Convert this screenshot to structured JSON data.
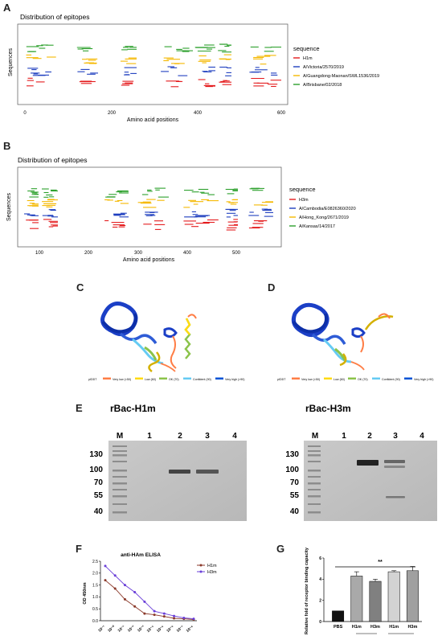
{
  "panels": {
    "A": "A",
    "B": "B",
    "C": "C",
    "D": "D",
    "E": "E",
    "F": "F",
    "G": "G"
  },
  "panel_a": {
    "title": "Distribution of epitopes",
    "xlabel": "Amino acid positions",
    "ylabel": "Sequences",
    "x_ticks": [
      "0",
      "200",
      "400",
      "600"
    ],
    "legend_title": "sequence",
    "legend": [
      {
        "name": "H1m",
        "color": "#e41a1c"
      },
      {
        "name": "A/Victoria/2570/2019",
        "color": "#1f3fbf"
      },
      {
        "name": "A/Guangdong-Maonan/SWL1536/2019",
        "color": "#f5b800"
      },
      {
        "name": "A/Brisbane/02/2018",
        "color": "#2ca02c"
      }
    ]
  },
  "panel_b": {
    "title": "Distribution of epitopes",
    "xlabel": "Amino acid positions",
    "ylabel": "Sequences",
    "x_ticks": [
      "100",
      "200",
      "300",
      "400",
      "500"
    ],
    "legend_title": "sequence",
    "legend": [
      {
        "name": "H3m",
        "color": "#e41a1c"
      },
      {
        "name": "A/Cambodia/E0826360/2020",
        "color": "#1f3fbf"
      },
      {
        "name": "A/Hong_Kong/2671/2019",
        "color": "#f5b800"
      },
      {
        "name": "A/Kansas/14/2017",
        "color": "#2ca02c"
      }
    ]
  },
  "plddt_legend": [
    {
      "label": "pIDDT",
      "color": ""
    },
    {
      "label": "Very low (<50)",
      "color": "#ff7d45"
    },
    {
      "label": "Low (60)",
      "color": "#ffdb13"
    },
    {
      "label": "OK (70)",
      "color": "#8bc34a"
    },
    {
      "label": "Confident (90)",
      "color": "#65cbf3"
    },
    {
      "label": "Very high (>90)",
      "color": "#0053d6"
    }
  ],
  "gel_left": {
    "title": "rBac-H1m",
    "lanes": [
      "M",
      "1",
      "2",
      "3",
      "4"
    ],
    "markers": [
      "130",
      "100",
      "70",
      "55",
      "40"
    ]
  },
  "gel_right": {
    "title": "rBac-H3m",
    "lanes": [
      "M",
      "1",
      "2",
      "3",
      "4"
    ],
    "markers": [
      "130",
      "100",
      "70",
      "55",
      "40"
    ]
  },
  "chart_data": [
    {
      "type": "line",
      "title": "anti-HAm ELISA",
      "ylabel": "OD 450nm",
      "x": [
        "10^-1",
        "10^-0",
        "10^-1",
        "10^-2",
        "10^-3",
        "10^-4",
        "10^-5",
        "10^-6",
        "10^-7",
        "10^-8"
      ],
      "x_tick_labels": [
        "10⁻¹",
        "10⁻⁰",
        "10⁻¹",
        "10⁻²",
        "10⁻³",
        "10⁻⁴",
        "10⁻⁵",
        "10⁻⁶",
        "10⁻⁷",
        "10⁻⁸"
      ],
      "y_ticks": [
        "0.0",
        "0.5",
        "1.0",
        "1.5",
        "2.0",
        "2.5"
      ],
      "ylim": [
        0,
        2.5
      ],
      "legend_placement": "top-right",
      "series": [
        {
          "name": "H1m",
          "color": "#8b3a2b",
          "values": [
            1.7,
            1.35,
            0.9,
            0.6,
            0.3,
            0.25,
            0.18,
            0.1,
            0.08,
            0.05
          ]
        },
        {
          "name": "H3m",
          "color": "#6a3fd8",
          "values": [
            2.3,
            1.9,
            1.5,
            1.2,
            0.8,
            0.4,
            0.3,
            0.2,
            0.12,
            0.08
          ]
        }
      ]
    },
    {
      "type": "bar",
      "ylabel": "Relative fold of receptor binding capacity",
      "categories": [
        "PBS",
        "H1m",
        "H3m",
        "H1m",
        "H3m"
      ],
      "values": [
        1.0,
        4.3,
        3.8,
        4.7,
        4.8
      ],
      "errors": [
        0.0,
        0.4,
        0.2,
        0.1,
        0.4
      ],
      "colors": [
        "#111111",
        "#a9a9a9",
        "#808080",
        "#d3d3d3",
        "#a0a0a0"
      ],
      "y_ticks": [
        "0",
        "2",
        "4",
        "6"
      ],
      "ylim": [
        0,
        6
      ],
      "significance": "**"
    }
  ]
}
